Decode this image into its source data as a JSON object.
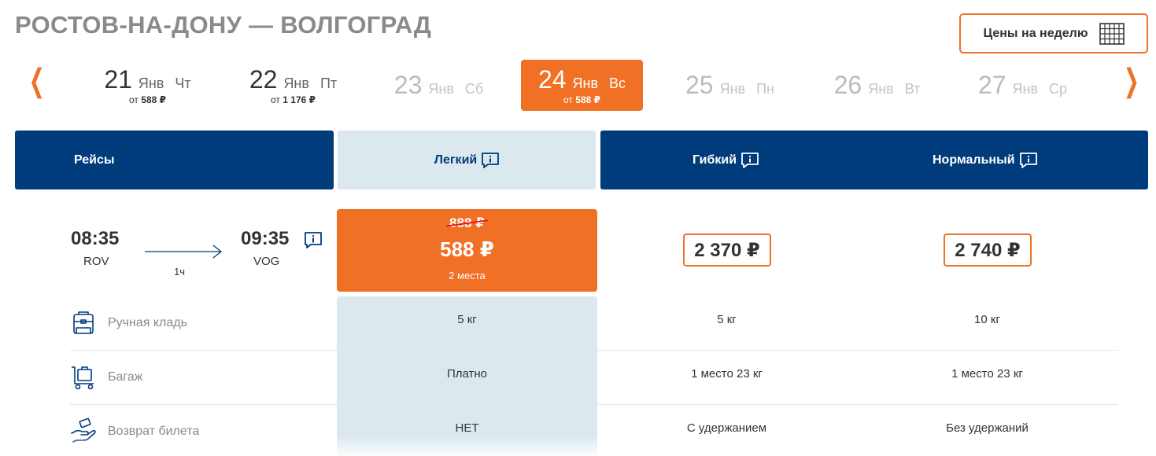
{
  "route": {
    "title": "РОСТОВ-НА-ДОНУ — ВОЛГОГРАД"
  },
  "week_button": {
    "label": "Цены на неделю",
    "icon": "calendar-icon"
  },
  "nav": {
    "prev": "❮",
    "next": "❯"
  },
  "dates": [
    {
      "day": "21",
      "month": "Янв",
      "weekday": "Чт",
      "price_prefix": "от",
      "price": "588 ₽",
      "state": "normal"
    },
    {
      "day": "22",
      "month": "Янв",
      "weekday": "Пт",
      "price_prefix": "от",
      "price": "1 176 ₽",
      "state": "normal"
    },
    {
      "day": "23",
      "month": "Янв",
      "weekday": "Сб",
      "state": "disabled"
    },
    {
      "day": "24",
      "month": "Янв",
      "weekday": "Вс",
      "price_prefix": "от",
      "price": "588 ₽",
      "state": "active"
    },
    {
      "day": "25",
      "month": "Янв",
      "weekday": "Пн",
      "state": "disabled"
    },
    {
      "day": "26",
      "month": "Янв",
      "weekday": "Вт",
      "state": "disabled"
    },
    {
      "day": "27",
      "month": "Янв",
      "weekday": "Ср",
      "state": "disabled"
    }
  ],
  "headers": {
    "flights": "Рейсы",
    "tariffs": [
      "Легкий",
      "Гибкий",
      "Нормальный"
    ]
  },
  "flight": {
    "departure_time": "08:35",
    "departure_code": "ROV",
    "arrival_time": "09:35",
    "arrival_code": "VOG",
    "duration": "1ч"
  },
  "prices": {
    "light": {
      "old": "888 ₽",
      "current": "588 ₽",
      "seats": "2 места"
    },
    "flexible": "2 370 ₽",
    "normal": "2 740 ₽"
  },
  "features": [
    {
      "label": "Ручная кладь",
      "icon": "backpack-icon",
      "values": [
        "5 кг",
        "5 кг",
        "10 кг"
      ]
    },
    {
      "label": "Багаж",
      "icon": "luggage-cart-icon",
      "values": [
        "Платно",
        "1 место 23 кг",
        "1 место 23 кг"
      ]
    },
    {
      "label": "Возврат билета",
      "icon": "refund-hand-icon",
      "values": [
        "НЕТ",
        "С удержанием",
        "Без удержаний"
      ]
    }
  ],
  "colors": {
    "accent": "#f07025",
    "navy": "#003b7b",
    "light_col": "#dbe9ee",
    "strike": "#e8141b"
  }
}
